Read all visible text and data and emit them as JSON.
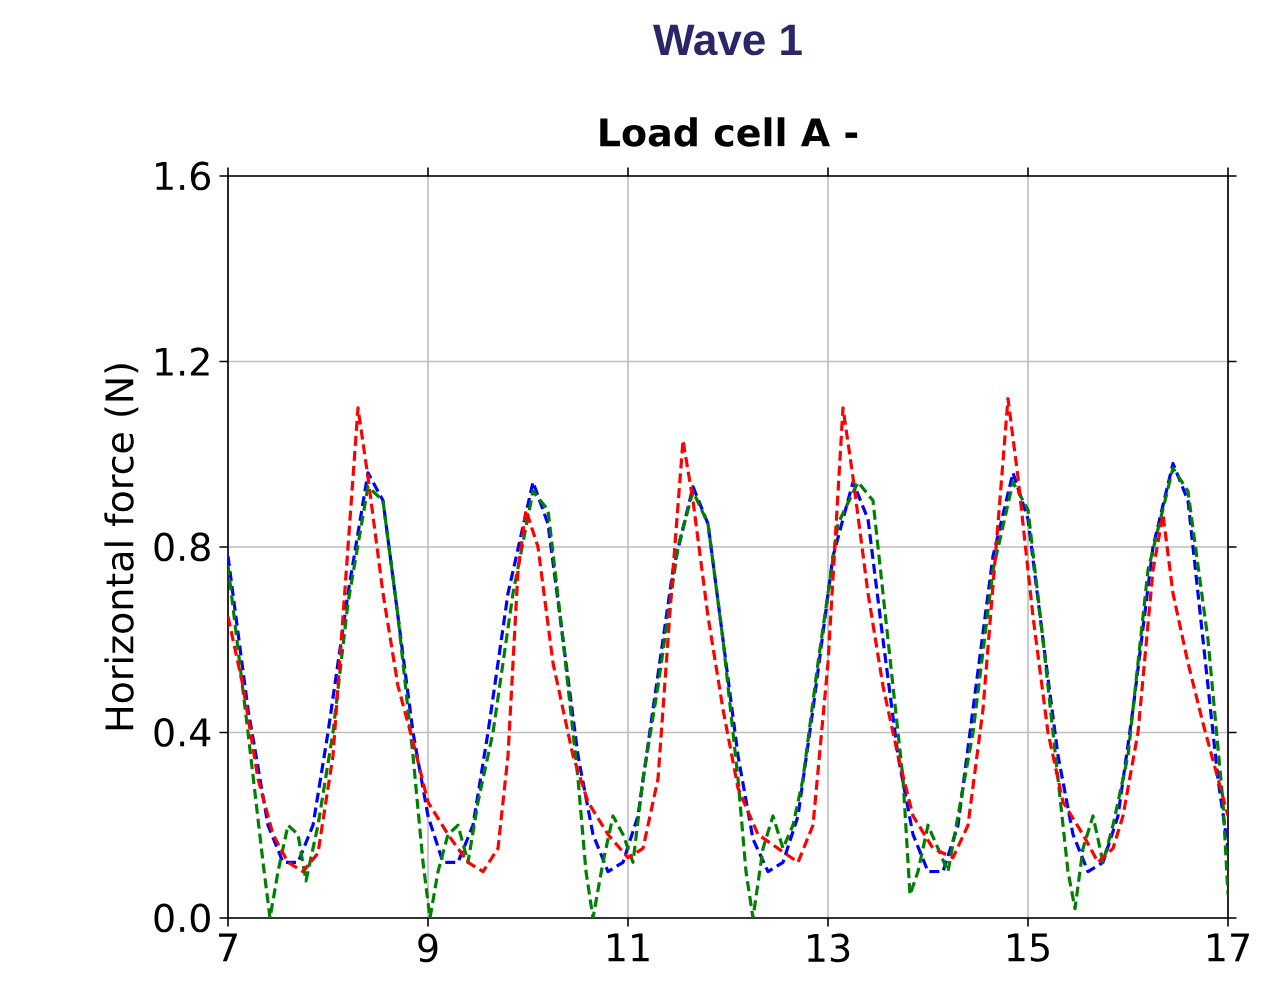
{
  "chart_data": {
    "type": "line",
    "title": "Wave 1",
    "subtitle": "Load cell A -",
    "ylabel": "Horizontal force (N)",
    "xlim": [
      7,
      17
    ],
    "ylim": [
      0,
      1.6
    ],
    "xticks": [
      7,
      9,
      11,
      13,
      15,
      17
    ],
    "yticks": [
      {
        "value": 0,
        "label": "0.0"
      },
      {
        "value": 0.4,
        "label": "0.4"
      },
      {
        "value": 0.8,
        "label": "0.8"
      },
      {
        "value": 1.2,
        "label": "1.2"
      },
      {
        "value": 1.6,
        "label": "1.6"
      }
    ],
    "grid": true,
    "line_style": "dashed",
    "series": [
      {
        "color": "#0000ff",
        "x": [
          7.0,
          7.2,
          7.4,
          7.55,
          7.7,
          7.85,
          8.0,
          8.2,
          8.4,
          8.55,
          8.7,
          8.85,
          9.0,
          9.15,
          9.3,
          9.45,
          9.6,
          9.8,
          10.05,
          10.2,
          10.35,
          10.5,
          10.65,
          10.8,
          10.95,
          11.1,
          11.25,
          11.45,
          11.65,
          11.8,
          11.95,
          12.1,
          12.25,
          12.4,
          12.55,
          12.7,
          12.85,
          13.05,
          13.25,
          13.4,
          13.55,
          13.7,
          13.85,
          14.0,
          14.15,
          14.3,
          14.45,
          14.65,
          14.85,
          15.0,
          15.15,
          15.3,
          15.45,
          15.6,
          15.75,
          15.9,
          16.05,
          16.25,
          16.45,
          16.6,
          16.75,
          16.9,
          17.0
        ],
        "values": [
          0.78,
          0.45,
          0.2,
          0.12,
          0.12,
          0.2,
          0.4,
          0.7,
          0.96,
          0.9,
          0.65,
          0.4,
          0.22,
          0.12,
          0.12,
          0.2,
          0.4,
          0.7,
          0.94,
          0.85,
          0.6,
          0.35,
          0.18,
          0.1,
          0.12,
          0.22,
          0.45,
          0.75,
          0.93,
          0.85,
          0.6,
          0.35,
          0.17,
          0.1,
          0.12,
          0.22,
          0.45,
          0.78,
          0.94,
          0.86,
          0.6,
          0.35,
          0.18,
          0.1,
          0.1,
          0.2,
          0.45,
          0.78,
          0.96,
          0.86,
          0.6,
          0.35,
          0.18,
          0.1,
          0.12,
          0.22,
          0.45,
          0.8,
          0.98,
          0.9,
          0.6,
          0.3,
          0.15
        ]
      },
      {
        "color": "#008000",
        "x": [
          7.0,
          7.2,
          7.35,
          7.42,
          7.5,
          7.6,
          7.7,
          7.78,
          7.9,
          8.05,
          8.2,
          8.4,
          8.55,
          8.7,
          8.85,
          8.95,
          9.02,
          9.1,
          9.2,
          9.3,
          9.4,
          9.5,
          9.65,
          9.85,
          10.05,
          10.2,
          10.35,
          10.5,
          10.58,
          10.65,
          10.75,
          10.85,
          10.95,
          11.05,
          11.15,
          11.3,
          11.5,
          11.65,
          11.8,
          11.95,
          12.1,
          12.18,
          12.25,
          12.35,
          12.45,
          12.55,
          12.65,
          12.75,
          12.9,
          13.1,
          13.3,
          13.45,
          13.6,
          13.75,
          13.82,
          13.9,
          14.0,
          14.1,
          14.2,
          14.3,
          14.45,
          14.65,
          14.85,
          15.0,
          15.15,
          15.3,
          15.4,
          15.47,
          15.55,
          15.65,
          15.75,
          15.85,
          16.0,
          16.2,
          16.45,
          16.6,
          16.8,
          16.95,
          17.0
        ],
        "values": [
          0.76,
          0.4,
          0.12,
          0.0,
          0.1,
          0.2,
          0.18,
          0.08,
          0.2,
          0.4,
          0.68,
          0.93,
          0.9,
          0.65,
          0.35,
          0.12,
          0.0,
          0.1,
          0.18,
          0.2,
          0.12,
          0.25,
          0.4,
          0.7,
          0.92,
          0.88,
          0.6,
          0.3,
          0.1,
          0.0,
          0.12,
          0.22,
          0.18,
          0.12,
          0.3,
          0.5,
          0.8,
          0.92,
          0.85,
          0.6,
          0.3,
          0.1,
          0.0,
          0.15,
          0.22,
          0.15,
          0.2,
          0.3,
          0.55,
          0.85,
          0.94,
          0.9,
          0.6,
          0.3,
          0.05,
          0.1,
          0.2,
          0.15,
          0.1,
          0.22,
          0.4,
          0.75,
          0.94,
          0.88,
          0.6,
          0.3,
          0.1,
          0.02,
          0.15,
          0.22,
          0.12,
          0.2,
          0.35,
          0.75,
          0.97,
          0.92,
          0.6,
          0.25,
          0.05
        ]
      },
      {
        "color": "#ff0000",
        "x": [
          7.0,
          7.15,
          7.3,
          7.45,
          7.6,
          7.75,
          7.9,
          8.05,
          8.2,
          8.3,
          8.4,
          8.55,
          8.7,
          8.85,
          9.0,
          9.2,
          9.4,
          9.55,
          9.7,
          9.8,
          9.9,
          9.98,
          10.1,
          10.25,
          10.45,
          10.6,
          10.8,
          11.0,
          11.15,
          11.3,
          11.45,
          11.55,
          11.65,
          11.8,
          11.95,
          12.1,
          12.3,
          12.5,
          12.7,
          12.85,
          13.0,
          13.15,
          13.25,
          13.4,
          13.55,
          13.7,
          13.85,
          14.05,
          14.25,
          14.4,
          14.55,
          14.7,
          14.8,
          14.9,
          15.05,
          15.2,
          15.35,
          15.55,
          15.7,
          15.85,
          15.95,
          16.1,
          16.25,
          16.35,
          16.45,
          16.6,
          16.75,
          16.9,
          17.0
        ],
        "values": [
          0.65,
          0.5,
          0.3,
          0.18,
          0.12,
          0.1,
          0.14,
          0.35,
          0.8,
          1.1,
          0.95,
          0.7,
          0.5,
          0.38,
          0.25,
          0.18,
          0.12,
          0.1,
          0.15,
          0.35,
          0.75,
          0.88,
          0.8,
          0.55,
          0.35,
          0.25,
          0.18,
          0.13,
          0.15,
          0.3,
          0.75,
          1.03,
          0.9,
          0.65,
          0.45,
          0.28,
          0.18,
          0.15,
          0.12,
          0.2,
          0.55,
          1.1,
          0.95,
          0.7,
          0.5,
          0.35,
          0.22,
          0.15,
          0.13,
          0.2,
          0.45,
          0.85,
          1.12,
          0.95,
          0.65,
          0.4,
          0.25,
          0.18,
          0.12,
          0.15,
          0.22,
          0.4,
          0.75,
          0.87,
          0.7,
          0.55,
          0.42,
          0.3,
          0.22
        ]
      }
    ]
  }
}
